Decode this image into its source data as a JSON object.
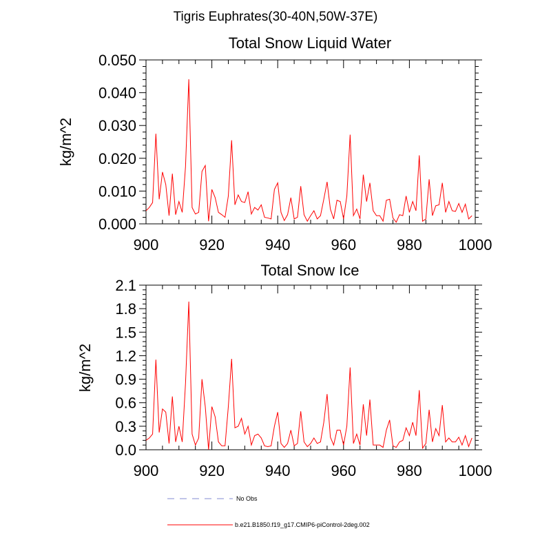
{
  "figure": {
    "title": "Tigris Euphrates(30-40N,50W-37E)"
  },
  "chart_data": [
    {
      "type": "line",
      "title": "Total Snow Liquid Water",
      "xlabel": "",
      "ylabel": "kg/m^2",
      "xlim": [
        900,
        1000
      ],
      "ylim": [
        0,
        0.05
      ],
      "xticks": [
        900,
        920,
        940,
        960,
        980,
        1000
      ],
      "xtick_labels": [
        "900",
        "920",
        "940",
        "960",
        "980",
        "1000"
      ],
      "yticks": [
        0,
        0.01,
        0.02,
        0.03,
        0.04,
        0.05
      ],
      "ytick_labels": [
        "0.000",
        "0.010",
        "0.020",
        "0.030",
        "0.040",
        "0.050"
      ],
      "grid": false,
      "series": [
        {
          "name": "b.e21.B1850.f19_g17.CMIP6-piControl-2deg.002",
          "color": "#ff0000",
          "x": [
            900,
            901,
            902,
            903,
            904,
            905,
            906,
            907,
            908,
            909,
            910,
            911,
            912,
            913,
            914,
            915,
            916,
            917,
            918,
            919,
            920,
            921,
            922,
            923,
            924,
            925,
            926,
            927,
            928,
            929,
            930,
            931,
            932,
            933,
            934,
            935,
            936,
            937,
            938,
            939,
            940,
            941,
            942,
            943,
            944,
            945,
            946,
            947,
            948,
            949,
            950,
            951,
            952,
            953,
            954,
            955,
            956,
            957,
            958,
            959,
            960,
            961,
            962,
            963,
            964,
            965,
            966,
            967,
            968,
            969,
            970,
            971,
            972,
            973,
            974,
            975,
            976,
            977,
            978,
            979,
            980,
            981,
            982,
            983,
            984,
            985,
            986,
            987,
            988,
            989,
            990,
            991,
            992,
            993,
            994,
            995,
            996,
            997,
            998,
            999
          ],
          "values": [
            0.004,
            0.005,
            0.0065,
            0.0275,
            0.0075,
            0.0158,
            0.012,
            0.0025,
            0.0153,
            0.0028,
            0.0068,
            0.0035,
            0.0175,
            0.0441,
            0.005,
            0.003,
            0.0035,
            0.016,
            0.0178,
            0.0008,
            0.0105,
            0.008,
            0.0035,
            0.0028,
            0.002,
            0.0085,
            0.0255,
            0.0058,
            0.0088,
            0.0068,
            0.0065,
            0.0098,
            0.003,
            0.005,
            0.0042,
            0.0058,
            0.002,
            0.0018,
            0.0015,
            0.0105,
            0.0125,
            0.0035,
            0.001,
            0.0028,
            0.008,
            0.0015,
            0.002,
            0.0115,
            0.0028,
            0.0008,
            0.0025,
            0.004,
            0.0015,
            0.0025,
            0.0075,
            0.0128,
            0.0045,
            0.0015,
            0.0072,
            0.0068,
            0.0015,
            0.0085,
            0.0272,
            0.0025,
            0.0045,
            0.0015,
            0.015,
            0.0068,
            0.0125,
            0.004,
            0.0025,
            0.0025,
            0.0008,
            0.0072,
            0.0075,
            0.0018,
            0.0005,
            0.0028,
            0.0025,
            0.0085,
            0.0035,
            0.0068,
            0.004,
            0.0209,
            0.0008,
            0.0015,
            0.0136,
            0.0025,
            0.0055,
            0.0058,
            0.0125,
            0.0035,
            0.0068,
            0.004,
            0.0038,
            0.0062,
            0.0035,
            0.006,
            0.0015,
            0.0025
          ]
        }
      ]
    },
    {
      "type": "line",
      "title": "Total Snow Ice",
      "xlabel": "",
      "ylabel": "kg/m^2",
      "xlim": [
        900,
        1000
      ],
      "ylim": [
        0,
        2.1
      ],
      "xticks": [
        900,
        920,
        940,
        960,
        980,
        1000
      ],
      "xtick_labels": [
        "900",
        "920",
        "940",
        "960",
        "980",
        "1000"
      ],
      "yticks": [
        0,
        0.3,
        0.6,
        0.9,
        1.2,
        1.5,
        1.8,
        2.1
      ],
      "ytick_labels": [
        "0.0",
        "0.3",
        "0.6",
        "0.9",
        "1.2",
        "1.5",
        "1.8",
        "2.1"
      ],
      "grid": false,
      "series": [
        {
          "name": "b.e21.B1850.f19_g17.CMIP6-piControl-2deg.002",
          "color": "#ff0000",
          "x": [
            900,
            901,
            902,
            903,
            904,
            905,
            906,
            907,
            908,
            909,
            910,
            911,
            912,
            913,
            914,
            915,
            916,
            917,
            918,
            919,
            920,
            921,
            922,
            923,
            924,
            925,
            926,
            927,
            928,
            929,
            930,
            931,
            932,
            933,
            934,
            935,
            936,
            937,
            938,
            939,
            940,
            941,
            942,
            943,
            944,
            945,
            946,
            947,
            948,
            949,
            950,
            951,
            952,
            953,
            954,
            955,
            956,
            957,
            958,
            959,
            960,
            961,
            962,
            963,
            964,
            965,
            966,
            967,
            968,
            969,
            970,
            971,
            972,
            973,
            974,
            975,
            976,
            977,
            978,
            979,
            980,
            981,
            982,
            983,
            984,
            985,
            986,
            987,
            988,
            989,
            990,
            991,
            992,
            993,
            994,
            995,
            996,
            997,
            998,
            999
          ],
          "values": [
            0.12,
            0.15,
            0.2,
            1.15,
            0.22,
            0.52,
            0.48,
            0.08,
            0.68,
            0.1,
            0.3,
            0.1,
            0.85,
            1.89,
            0.2,
            0.06,
            0.15,
            0.9,
            0.55,
            0.0,
            0.55,
            0.42,
            0.1,
            0.05,
            0.05,
            0.55,
            1.16,
            0.28,
            0.3,
            0.4,
            0.2,
            0.3,
            0.06,
            0.18,
            0.2,
            0.15,
            0.05,
            0.04,
            0.05,
            0.3,
            0.48,
            0.08,
            0.03,
            0.08,
            0.25,
            0.05,
            0.08,
            0.49,
            0.1,
            0.04,
            0.08,
            0.15,
            0.08,
            0.1,
            0.35,
            0.71,
            0.16,
            0.06,
            0.25,
            0.25,
            0.06,
            0.3,
            1.05,
            0.08,
            0.2,
            0.06,
            0.58,
            0.18,
            0.64,
            0.06,
            0.06,
            0.06,
            0.03,
            0.25,
            0.38,
            0.05,
            0.03,
            0.1,
            0.12,
            0.28,
            0.18,
            0.35,
            0.18,
            0.76,
            0.02,
            0.08,
            0.51,
            0.1,
            0.27,
            0.18,
            0.57,
            0.1,
            0.15,
            0.1,
            0.1,
            0.16,
            0.06,
            0.18,
            0.04,
            0.15
          ]
        }
      ]
    }
  ],
  "legend": {
    "placement": "bottom",
    "entries": [
      {
        "label": "No Obs",
        "color": "#9aa0dc",
        "style": "dashed"
      },
      {
        "label": "b.e21.B1850.f19_g17.CMIP6-piControl-2deg.002",
        "color": "#ff0000",
        "style": "solid"
      }
    ]
  }
}
